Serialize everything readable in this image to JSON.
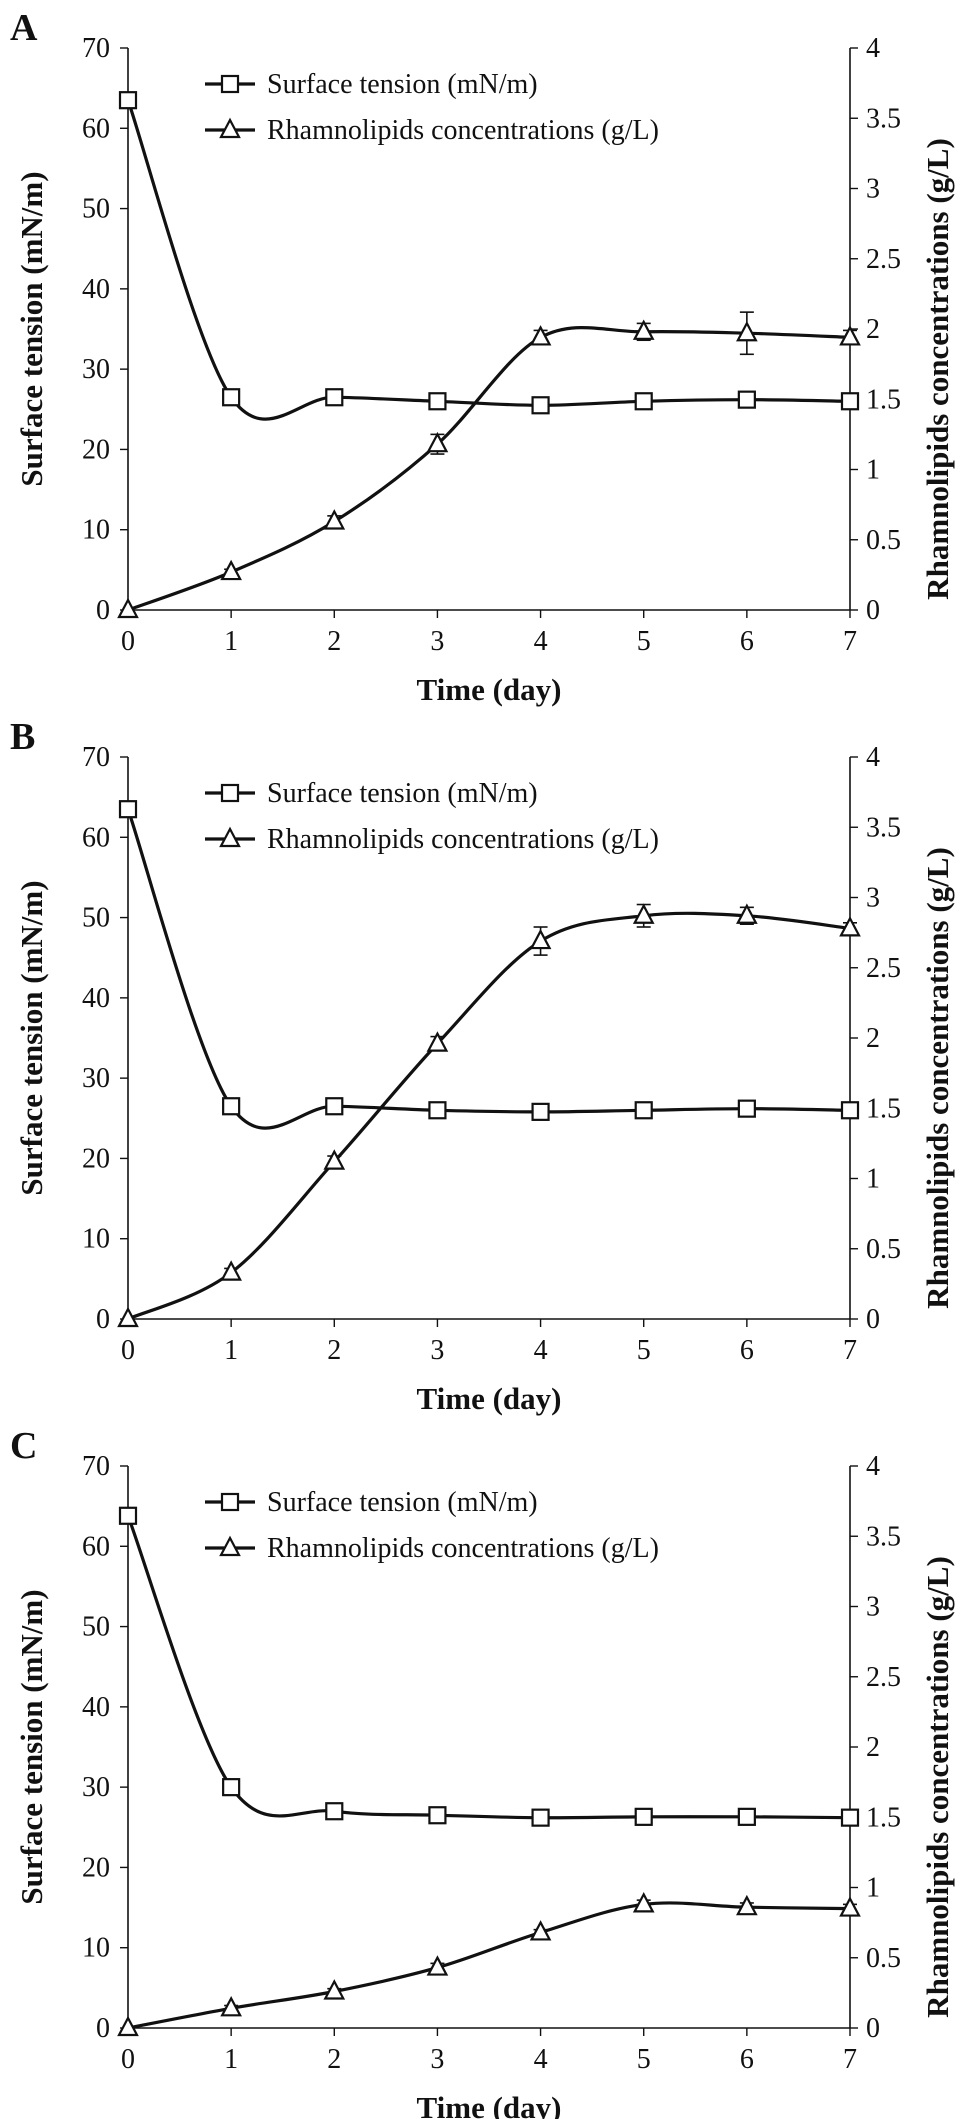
{
  "chart_data": [
    {
      "panel": "A",
      "type": "line",
      "xlabel": "Time (day)",
      "ylabel_left": "Surface tension (mN/m)",
      "ylabel_right": "Rhamnolipids concentrations (g/L)",
      "x": [
        0,
        1,
        2,
        3,
        4,
        5,
        6,
        7
      ],
      "x_ticks": [
        "0",
        "1",
        "2",
        "3",
        "4",
        "5",
        "6",
        "7"
      ],
      "ylim_left": [
        0,
        70
      ],
      "yticks_left": [
        "0",
        "10",
        "20",
        "30",
        "40",
        "50",
        "60",
        "70"
      ],
      "ylim_right": [
        0,
        4
      ],
      "yticks_right": [
        "0",
        "0.5",
        "1",
        "1.5",
        "2",
        "2.5",
        "3",
        "3.5",
        "4"
      ],
      "grid": false,
      "legend": "top",
      "series": [
        {
          "name": "Surface tension (mN/m)",
          "axis": "left",
          "marker": "square",
          "values": [
            63.5,
            26.5,
            26.5,
            26.0,
            25.5,
            26.0,
            26.2,
            26.0
          ],
          "errors": [
            0,
            0,
            0,
            0,
            0,
            0,
            0,
            0
          ]
        },
        {
          "name": "Rhamnolipids concentrations (g/L)",
          "axis": "right",
          "marker": "triangle",
          "values": [
            0.0,
            0.27,
            0.63,
            1.18,
            1.94,
            1.98,
            1.97,
            1.94
          ],
          "errors": [
            0,
            0.02,
            0.04,
            0.07,
            0.05,
            0.06,
            0.15,
            0.05
          ]
        }
      ]
    },
    {
      "panel": "B",
      "type": "line",
      "xlabel": "Time (day)",
      "ylabel_left": "Surface tension (mN/m)",
      "ylabel_right": "Rhamnolipids concentrations (g/L)",
      "x": [
        0,
        1,
        2,
        3,
        4,
        5,
        6,
        7
      ],
      "x_ticks": [
        "0",
        "1",
        "2",
        "3",
        "4",
        "5",
        "6",
        "7"
      ],
      "ylim_left": [
        0,
        70
      ],
      "yticks_left": [
        "0",
        "10",
        "20",
        "30",
        "40",
        "50",
        "60",
        "70"
      ],
      "ylim_right": [
        0,
        4
      ],
      "yticks_right": [
        "0",
        "0.5",
        "1",
        "1.5",
        "2",
        "2.5",
        "3",
        "3.5",
        "4"
      ],
      "grid": false,
      "legend": "top",
      "series": [
        {
          "name": "Surface tension (mN/m)",
          "axis": "left",
          "marker": "square",
          "values": [
            63.5,
            26.5,
            26.5,
            26.0,
            25.8,
            26.0,
            26.2,
            26.0
          ],
          "errors": [
            0,
            0,
            0,
            0,
            0,
            0,
            0,
            0
          ]
        },
        {
          "name": "Rhamnolipids concentrations (g/L)",
          "axis": "right",
          "marker": "triangle",
          "values": [
            0.0,
            0.33,
            1.12,
            1.96,
            2.69,
            2.87,
            2.87,
            2.78
          ],
          "errors": [
            0,
            0.03,
            0.04,
            0.05,
            0.1,
            0.08,
            0.06,
            0.04
          ]
        }
      ]
    },
    {
      "panel": "C",
      "type": "line",
      "xlabel": "Time (day)",
      "ylabel_left": "Surface tension (mN/m)",
      "ylabel_right": "Rhamnolipids concentrations (g/L)",
      "x": [
        0,
        1,
        2,
        3,
        4,
        5,
        6,
        7
      ],
      "x_ticks": [
        "0",
        "1",
        "2",
        "3",
        "4",
        "5",
        "6",
        "7"
      ],
      "ylim_left": [
        0,
        70
      ],
      "yticks_left": [
        "0",
        "10",
        "20",
        "30",
        "40",
        "50",
        "60",
        "70"
      ],
      "ylim_right": [
        0,
        4
      ],
      "yticks_right": [
        "0",
        "0.5",
        "1",
        "1.5",
        "2",
        "2.5",
        "3",
        "3.5",
        "4"
      ],
      "grid": false,
      "legend": "top",
      "series": [
        {
          "name": "Surface tension (mN/m)",
          "axis": "left",
          "marker": "square",
          "values": [
            63.8,
            30.0,
            27.0,
            26.5,
            26.2,
            26.3,
            26.3,
            26.2
          ],
          "errors": [
            0,
            0,
            0,
            0,
            0,
            0,
            0,
            0
          ]
        },
        {
          "name": "Rhamnolipids concentrations (g/L)",
          "axis": "right",
          "marker": "triangle",
          "values": [
            0.0,
            0.14,
            0.26,
            0.43,
            0.68,
            0.88,
            0.86,
            0.85
          ],
          "errors": [
            0,
            0.02,
            0.02,
            0.03,
            0.02,
            0.03,
            0.03,
            0.03
          ]
        }
      ]
    }
  ]
}
